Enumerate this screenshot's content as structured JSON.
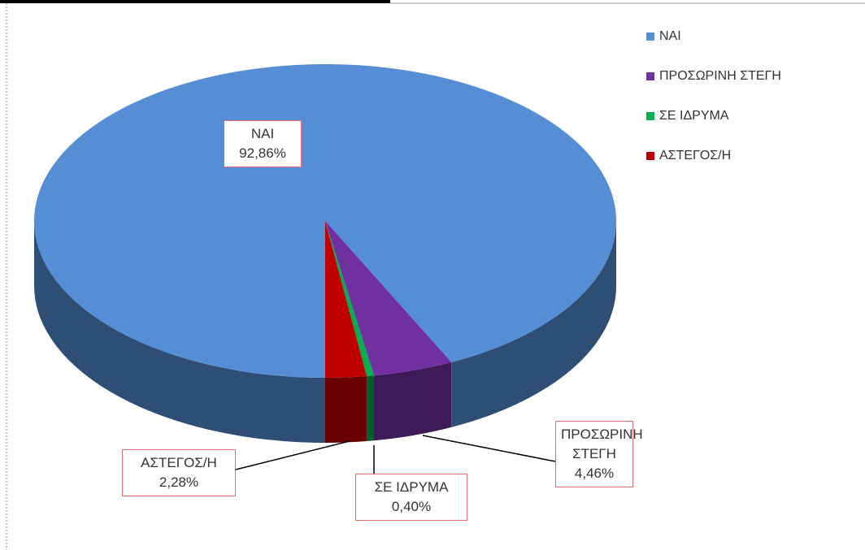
{
  "chart_data": {
    "type": "pie",
    "categories": [
      "ΝΑΙ",
      "ΠΡΟΣΩΡΙΝΗ ΣΤΕΓΗ",
      "ΣΕ ΙΔΡΥΜΑ",
      "ΑΣΤΕΓΟΣ/Η"
    ],
    "values": [
      92.86,
      4.46,
      0.4,
      2.28
    ],
    "value_labels": [
      "92,86%",
      "4,46%",
      "0,40%",
      "2,28%"
    ],
    "colors": [
      "#558ed5",
      "#7030a0",
      "#00b050",
      "#c00000"
    ],
    "legend": "top-right"
  }
}
